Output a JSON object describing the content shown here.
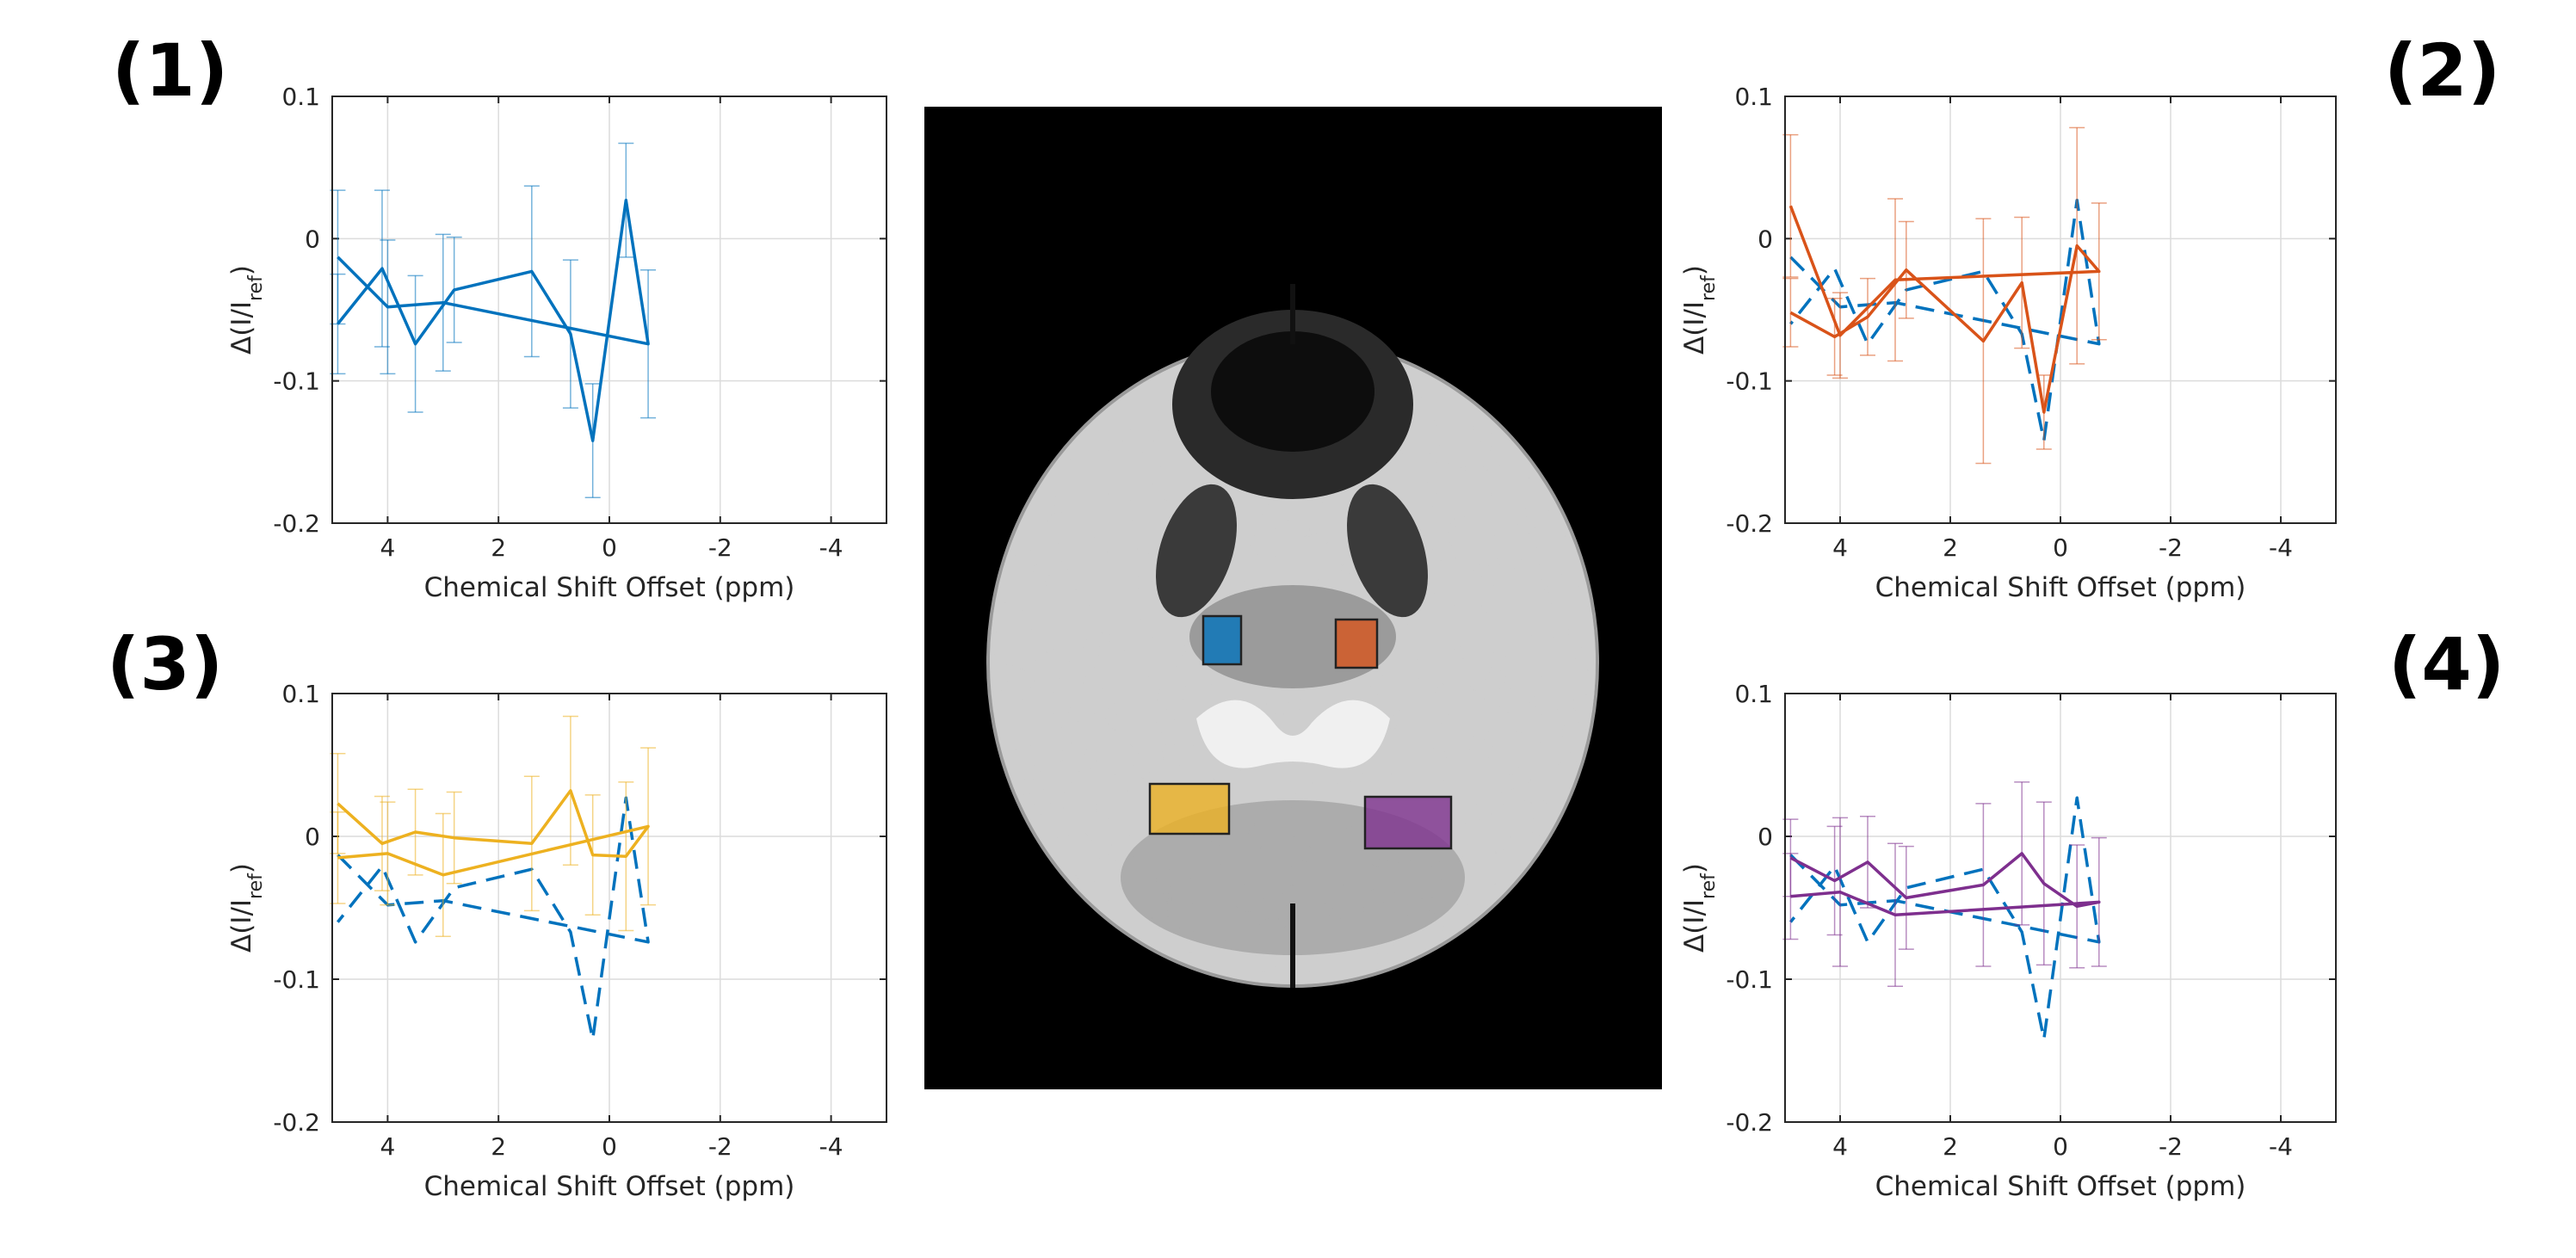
{
  "panel_labels": [
    "(1)",
    "(2)",
    "(3)",
    "(4)"
  ],
  "colors": {
    "region1": "#0072BD",
    "region2": "#D95319",
    "region3": "#EDB120",
    "region4": "#7E2F8E",
    "reference": "#0072BD",
    "grid": "#dcdcdc",
    "axes": "#262626",
    "image_bg": "#000000"
  },
  "brain_image": {
    "description_regions": [
      {
        "name": "region-1",
        "color": "#0072BD"
      },
      {
        "name": "region-2",
        "color": "#D95319"
      },
      {
        "name": "region-3",
        "color": "#EDB120"
      },
      {
        "name": "region-4",
        "color": "#7E2F8E"
      }
    ]
  },
  "chart_data": [
    {
      "type": "line",
      "panel": "(1)",
      "xlabel": "Chemical Shift Offset (ppm)",
      "ylabel": "Δ(I/I_ref)",
      "xlim": [
        5,
        -5
      ],
      "ylim": [
        -0.2,
        0.1
      ],
      "x_ticks": [
        4,
        2,
        0,
        -2,
        -4
      ],
      "y_ticks": [
        0.1,
        0,
        -0.1,
        -0.2
      ],
      "x_tick_labels": [
        "4",
        "2",
        "0",
        "-2",
        "-4"
      ],
      "y_tick_labels": [
        "0.1",
        "0",
        "-0.1",
        "-0.2"
      ],
      "grid": true,
      "x": [
        4.9,
        4,
        3,
        -0.7,
        -0.3,
        0.3,
        0.7,
        1.4,
        2.8,
        3.5,
        4.1,
        4.9
      ],
      "series": [
        {
          "color": "#0072BD",
          "style": "solid",
          "error_bars": true,
          "values": [
            -0.013,
            -0.048,
            -0.045,
            -0.074,
            0.027,
            -0.142,
            -0.067,
            -0.023,
            -0.036,
            -0.074,
            -0.021,
            -0.06
          ],
          "errors": [
            0.047,
            0.047,
            0.048,
            0.052,
            0.04,
            0.04,
            0.052,
            0.06,
            0.037,
            0.048,
            0.055,
            0.035
          ]
        }
      ]
    },
    {
      "type": "line",
      "panel": "(2)",
      "xlabel": "Chemical Shift Offset (ppm)",
      "ylabel": "Δ(I/I_ref)",
      "xlim": [
        5,
        -5
      ],
      "ylim": [
        -0.2,
        0.1
      ],
      "x_ticks": [
        4,
        2,
        0,
        -2,
        -4
      ],
      "y_ticks": [
        0.1,
        0,
        -0.1,
        -0.2
      ],
      "x_tick_labels": [
        "4",
        "2",
        "0",
        "-2",
        "-4"
      ],
      "y_tick_labels": [
        "0.1",
        "0",
        "-0.1",
        "-0.2"
      ],
      "grid": true,
      "x": [
        4.9,
        4,
        3,
        -0.7,
        -0.3,
        0.3,
        0.7,
        1.4,
        2.8,
        3.5,
        4.1,
        4.9
      ],
      "series": [
        {
          "color": "#D95319",
          "style": "solid",
          "error_bars": true,
          "values": [
            0.023,
            -0.068,
            -0.029,
            -0.023,
            -0.005,
            -0.122,
            -0.031,
            -0.072,
            -0.022,
            -0.055,
            -0.069,
            -0.052
          ],
          "errors": [
            0.05,
            0.03,
            0.057,
            0.048,
            0.083,
            0.026,
            0.046,
            0.086,
            0.034,
            0.027,
            0.027,
            0.024
          ]
        },
        {
          "color": "#0072BD",
          "style": "dashed",
          "error_bars": false,
          "values": [
            -0.013,
            -0.048,
            -0.045,
            -0.074,
            0.027,
            -0.142,
            -0.067,
            -0.023,
            -0.036,
            -0.074,
            -0.021,
            -0.06
          ]
        }
      ]
    },
    {
      "type": "line",
      "panel": "(3)",
      "xlabel": "Chemical Shift Offset (ppm)",
      "ylabel": "Δ(I/I_ref)",
      "xlim": [
        5,
        -5
      ],
      "ylim": [
        -0.2,
        0.1
      ],
      "x_ticks": [
        4,
        2,
        0,
        -2,
        -4
      ],
      "y_ticks": [
        0.1,
        0,
        -0.1,
        -0.2
      ],
      "x_tick_labels": [
        "4",
        "2",
        "0",
        "-2",
        "-4"
      ],
      "y_tick_labels": [
        "0.1",
        "0",
        "-0.1",
        "-0.2"
      ],
      "grid": true,
      "x": [
        4.9,
        4,
        3,
        -0.7,
        -0.3,
        0.3,
        0.7,
        1.4,
        2.8,
        3.5,
        4.1,
        4.9
      ],
      "series": [
        {
          "color": "#EDB120",
          "style": "solid",
          "error_bars": true,
          "values": [
            -0.015,
            -0.012,
            -0.027,
            0.007,
            -0.014,
            -0.013,
            0.032,
            -0.005,
            -0.001,
            0.003,
            -0.005,
            0.023
          ],
          "errors": [
            0.032,
            0.036,
            0.043,
            0.055,
            0.052,
            0.042,
            0.052,
            0.047,
            0.032,
            0.03,
            0.033,
            0.035
          ]
        },
        {
          "color": "#0072BD",
          "style": "dashed",
          "error_bars": false,
          "values": [
            -0.013,
            -0.048,
            -0.045,
            -0.074,
            0.027,
            -0.142,
            -0.067,
            -0.023,
            -0.036,
            -0.074,
            -0.021,
            -0.06
          ]
        }
      ]
    },
    {
      "type": "line",
      "panel": "(4)",
      "xlabel": "Chemical Shift Offset (ppm)",
      "ylabel": "Δ(I/I_ref)",
      "xlim": [
        5,
        -5
      ],
      "ylim": [
        -0.2,
        0.1
      ],
      "x_ticks": [
        4,
        2,
        0,
        -2,
        -4
      ],
      "y_ticks": [
        0.1,
        0,
        -0.1,
        -0.2
      ],
      "x_tick_labels": [
        "4",
        "2",
        "0",
        "-2",
        "-4"
      ],
      "y_tick_labels": [
        "0.1",
        "0",
        "-0.1",
        "-0.2"
      ],
      "grid": true,
      "x": [
        4.9,
        4,
        3,
        -0.7,
        -0.3,
        0.3,
        0.7,
        1.4,
        2.8,
        3.5,
        4.1,
        4.9
      ],
      "series": [
        {
          "color": "#7E2F8E",
          "style": "solid",
          "error_bars": true,
          "values": [
            -0.042,
            -0.039,
            -0.055,
            -0.046,
            -0.049,
            -0.033,
            -0.012,
            -0.034,
            -0.043,
            -0.018,
            -0.031,
            -0.015
          ],
          "errors": [
            0.03,
            0.052,
            0.05,
            0.045,
            0.043,
            0.057,
            0.05,
            0.057,
            0.036,
            0.032,
            0.038,
            0.027
          ]
        },
        {
          "color": "#0072BD",
          "style": "dashed",
          "error_bars": false,
          "values": [
            -0.013,
            -0.048,
            -0.045,
            -0.074,
            0.027,
            -0.142,
            -0.067,
            -0.023,
            -0.036,
            -0.074,
            -0.021,
            -0.06
          ]
        }
      ]
    }
  ]
}
